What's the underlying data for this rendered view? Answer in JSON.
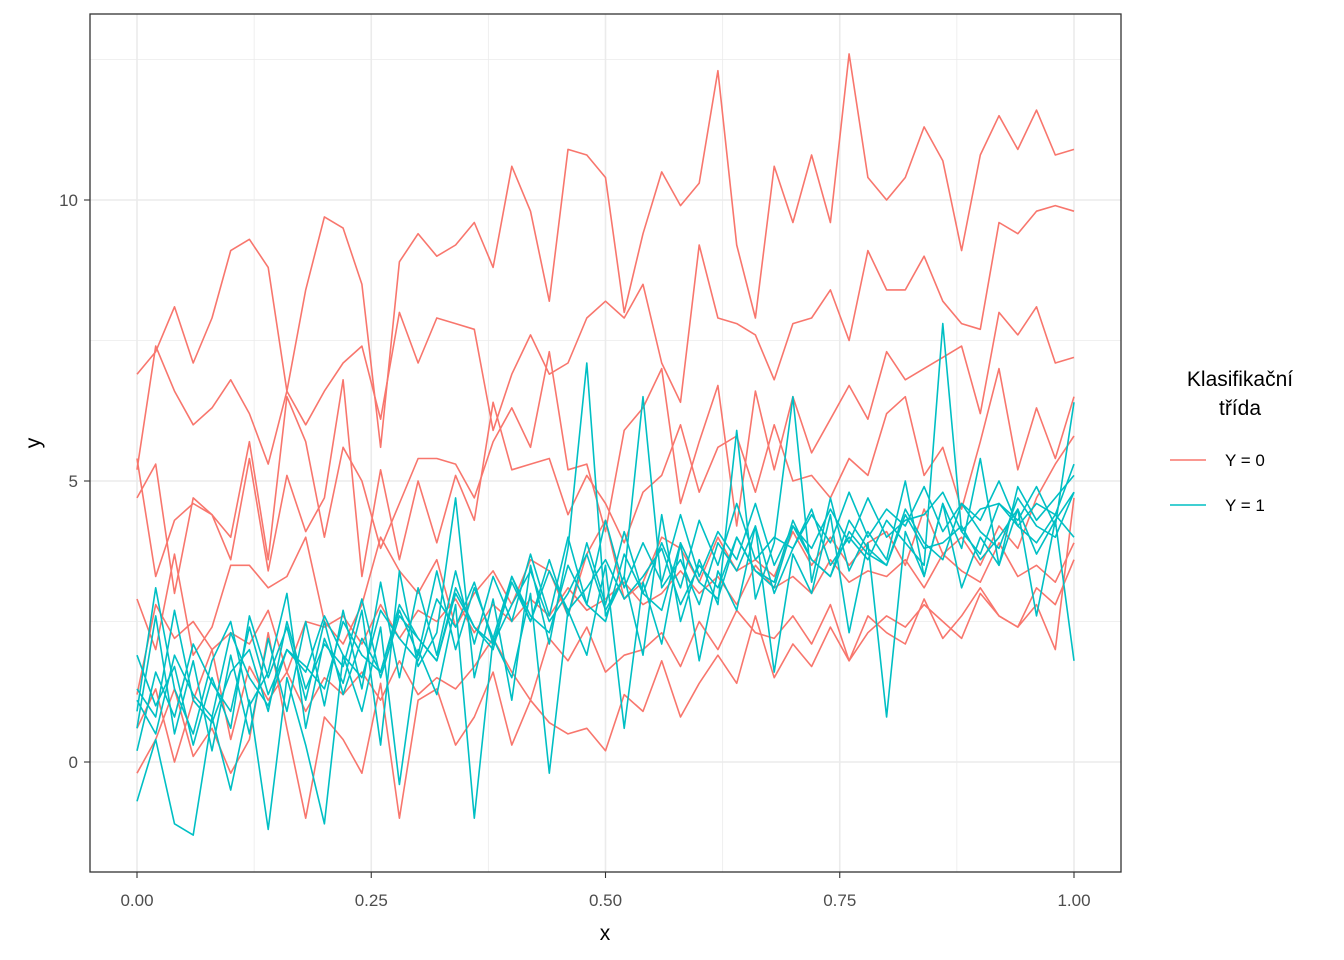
{
  "chart_data": {
    "type": "line",
    "xlabel": "x",
    "ylabel": "y",
    "xlim": [
      -0.1,
      2.1
    ],
    "ylim": [
      -1.6,
      12.8
    ],
    "x_ticks": [
      0,
      0.25,
      0.5,
      0.75,
      1
    ],
    "x_tick_labels": [
      "0.00",
      "0.25",
      "0.50",
      "0.75",
      "1.00"
    ],
    "y_ticks": [
      0,
      5,
      10
    ],
    "y_tick_labels": [
      "0",
      "5",
      "10"
    ],
    "x_minor": [
      0.125,
      0.375,
      0.625,
      0.875
    ],
    "y_minor": [
      -2.5,
      2.5,
      7.5,
      12.5
    ],
    "grid": true,
    "legend": {
      "title": "Klasifikační\ntřída",
      "title_lines": [
        "Klasifikační",
        "třída"
      ],
      "position": "right",
      "entries": [
        {
          "label": "Y = 0",
          "color": "#F8766D"
        },
        {
          "label": "Y = 1",
          "color": "#00BFC4"
        }
      ]
    },
    "x": [
      0,
      0.02,
      0.04,
      0.06,
      0.08,
      0.1,
      0.12,
      0.14,
      0.16,
      0.18,
      0.2,
      0.22,
      0.24,
      0.26,
      0.28,
      0.3,
      0.32,
      0.34,
      0.36,
      0.38,
      0.4,
      0.42,
      0.44,
      0.46,
      0.48,
      0.5,
      0.52,
      0.54,
      0.56,
      0.58,
      0.6,
      0.62,
      0.64,
      0.66,
      0.68,
      0.7,
      0.72,
      0.74,
      0.76,
      0.78,
      0.8,
      0.82,
      0.84,
      0.86,
      0.88,
      0.9,
      0.92,
      0.94,
      0.96,
      0.98,
      1
    ],
    "series": [
      {
        "group": "Y = 0",
        "color": "#F8766D",
        "values": [
          6.9,
          7.3,
          8.1,
          7.1,
          7.9,
          9.1,
          9.3,
          8.8,
          6.6,
          8.4,
          9.7,
          9.5,
          8.5,
          5.6,
          8.9,
          9.4,
          9.0,
          9.2,
          9.6,
          8.8,
          10.6,
          9.8,
          8.2,
          10.9,
          10.8,
          10.4,
          8.0,
          9.4,
          10.5,
          9.9,
          10.3,
          12.3,
          9.2,
          7.9,
          10.6,
          9.6,
          10.8,
          9.6,
          12.6,
          10.4,
          10.0,
          10.4,
          11.3,
          10.7,
          9.1,
          10.8,
          11.5,
          10.9,
          11.6,
          10.8,
          10.9
        ]
      },
      {
        "group": "Y = 0",
        "color": "#F8766D",
        "values": [
          5.2,
          7.4,
          6.6,
          6.0,
          6.3,
          6.8,
          6.2,
          5.3,
          6.6,
          6.0,
          6.6,
          7.1,
          7.4,
          6.1,
          8.0,
          7.1,
          7.9,
          7.8,
          7.7,
          5.9,
          6.9,
          7.6,
          6.9,
          7.1,
          7.9,
          8.2,
          7.9,
          8.5,
          7.1,
          6.4,
          9.2,
          7.9,
          7.8,
          7.6,
          6.8,
          7.8,
          7.9,
          8.4,
          7.5,
          9.1,
          8.4,
          8.4,
          9.0,
          8.2,
          7.8,
          7.7,
          9.6,
          9.4,
          9.8,
          9.9,
          9.8
        ]
      },
      {
        "group": "Y = 0",
        "color": "#F8766D",
        "values": [
          5.4,
          3.3,
          4.3,
          4.6,
          4.4,
          4.0,
          5.7,
          3.6,
          6.5,
          5.7,
          4.0,
          5.6,
          5.0,
          3.8,
          4.6,
          5.4,
          5.4,
          5.3,
          4.7,
          5.7,
          6.3,
          5.6,
          7.3,
          5.2,
          5.3,
          4.1,
          5.9,
          6.3,
          7.0,
          4.6,
          5.7,
          6.7,
          4.2,
          6.6,
          5.2,
          6.5,
          5.5,
          6.1,
          6.7,
          6.1,
          7.3,
          6.8,
          7.0,
          7.2,
          7.4,
          6.2,
          8.0,
          7.6,
          8.1,
          7.1,
          7.2
        ]
      },
      {
        "group": "Y = 0",
        "color": "#F8766D",
        "values": [
          4.7,
          5.3,
          3.0,
          4.7,
          4.4,
          3.6,
          5.4,
          3.4,
          5.1,
          4.1,
          4.7,
          6.8,
          3.3,
          5.2,
          3.6,
          5.0,
          3.9,
          5.1,
          4.3,
          6.4,
          5.2,
          5.3,
          5.4,
          4.4,
          5.1,
          4.6,
          3.9,
          4.8,
          5.1,
          6.0,
          4.8,
          5.6,
          5.8,
          4.8,
          6.0,
          5.0,
          5.1,
          4.7,
          5.4,
          5.1,
          6.2,
          6.5,
          5.1,
          5.6,
          4.5,
          5.7,
          7.0,
          5.2,
          6.3,
          5.4,
          6.5
        ]
      },
      {
        "group": "Y = 0",
        "color": "#F8766D",
        "values": [
          2.9,
          2.0,
          3.7,
          1.9,
          2.4,
          3.5,
          3.5,
          3.1,
          3.3,
          4.0,
          2.5,
          2.1,
          2.8,
          4.0,
          3.4,
          3.0,
          3.6,
          2.4,
          3.0,
          3.4,
          2.8,
          3.6,
          3.4,
          2.6,
          3.7,
          4.3,
          2.9,
          3.2,
          4.0,
          3.8,
          3.2,
          4.0,
          3.4,
          3.6,
          3.3,
          4.1,
          3.5,
          4.0,
          3.5,
          3.9,
          4.1,
          3.5,
          4.5,
          3.7,
          4.0,
          3.5,
          4.2,
          3.8,
          4.7,
          5.3,
          5.8
        ]
      },
      {
        "group": "Y = 0",
        "color": "#F8766D",
        "values": [
          1.2,
          2.8,
          2.2,
          2.5,
          2.0,
          2.3,
          2.1,
          2.7,
          1.6,
          2.5,
          2.4,
          2.6,
          2.1,
          2.8,
          2.2,
          2.7,
          2.5,
          2.9,
          2.3,
          2.8,
          2.5,
          2.9,
          2.6,
          3.1,
          2.7,
          2.9,
          3.2,
          2.8,
          3.0,
          3.4,
          3.0,
          3.3,
          2.8,
          3.5,
          3.1,
          3.3,
          3.0,
          3.6,
          3.2,
          3.4,
          3.3,
          3.6,
          3.1,
          3.7,
          3.4,
          3.2,
          3.9,
          3.3,
          3.5,
          3.2,
          3.9
        ]
      },
      {
        "group": "Y = 0",
        "color": "#F8766D",
        "values": [
          0.6,
          1.3,
          0.0,
          1.1,
          2.0,
          0.4,
          1.7,
          1.1,
          1.6,
          0.9,
          1.5,
          1.2,
          1.6,
          1.1,
          1.8,
          1.2,
          1.5,
          1.3,
          1.7,
          2.2,
          1.6,
          1.1,
          2.2,
          1.8,
          2.4,
          1.6,
          1.9,
          2.0,
          2.3,
          1.7,
          2.5,
          2.0,
          2.7,
          2.3,
          2.2,
          2.6,
          2.1,
          2.8,
          1.8,
          2.3,
          2.6,
          2.4,
          2.8,
          2.5,
          2.2,
          3.0,
          2.6,
          2.4,
          3.1,
          2.8,
          3.6
        ]
      },
      {
        "group": "Y = 0",
        "color": "#F8766D",
        "values": [
          -0.2,
          0.4,
          1.3,
          0.1,
          0.6,
          -0.2,
          0.4,
          2.3,
          0.6,
          -1.0,
          0.8,
          0.4,
          -0.2,
          1.4,
          -1.0,
          1.1,
          1.3,
          0.3,
          0.8,
          1.6,
          0.3,
          1.1,
          0.7,
          0.5,
          0.6,
          0.2,
          1.2,
          0.9,
          1.8,
          0.8,
          1.4,
          1.9,
          1.4,
          2.6,
          1.5,
          2.1,
          1.7,
          2.4,
          1.8,
          2.6,
          2.3,
          2.1,
          2.9,
          2.2,
          2.6,
          3.1,
          2.6,
          2.4,
          2.8,
          2.0,
          4.7
        ]
      },
      {
        "group": "Y = 1",
        "color": "#00BFC4",
        "values": [
          1.9,
          1.0,
          1.7,
          0.3,
          1.5,
          0.6,
          2.6,
          1.5,
          2.4,
          1.1,
          2.5,
          1.2,
          2.2,
          1.6,
          2.7,
          1.9,
          3.4,
          2.0,
          3.1,
          2.2,
          3.3,
          2.5,
          3.6,
          2.6,
          3.9,
          2.8,
          4.1,
          3.0,
          3.9,
          3.1,
          4.3,
          3.5,
          4.6,
          3.6,
          4.0,
          3.8,
          4.4,
          3.9,
          4.8,
          4.0,
          4.5,
          4.2,
          4.9,
          4.1,
          4.6,
          4.3,
          5.0,
          4.2,
          4.6,
          4.4,
          5.3
        ]
      },
      {
        "group": "Y = 1",
        "color": "#00BFC4",
        "values": [
          0.6,
          2.6,
          0.5,
          1.8,
          0.2,
          1.9,
          0.5,
          2.2,
          0.9,
          2.5,
          1.0,
          2.7,
          1.3,
          3.2,
          1.5,
          3.1,
          1.9,
          3.4,
          2.1,
          3.3,
          2.5,
          3.7,
          2.6,
          4.0,
          2.8,
          4.3,
          3.1,
          3.9,
          3.2,
          4.4,
          3.3,
          4.1,
          3.6,
          4.6,
          3.5,
          4.2,
          3.8,
          4.5,
          3.9,
          4.7,
          4.0,
          4.3,
          4.4,
          4.8,
          4.1,
          4.5,
          4.6,
          4.3,
          4.9,
          4.2,
          6.4
        ]
      },
      {
        "group": "Y = 1",
        "color": "#00BFC4",
        "values": [
          1.3,
          0.8,
          2.7,
          1.1,
          0.7,
          1.6,
          2.0,
          0.9,
          2.5,
          1.3,
          2.1,
          1.7,
          2.9,
          1.5,
          2.6,
          2.2,
          1.8,
          3.0,
          2.4,
          2.1,
          3.2,
          2.5,
          3.4,
          2.7,
          3.1,
          3.6,
          2.9,
          3.3,
          3.8,
          2.8,
          3.5,
          3.1,
          4.0,
          3.4,
          3.2,
          4.3,
          3.6,
          3.3,
          4.1,
          3.7,
          3.5,
          4.4,
          3.8,
          3.9,
          4.2,
          3.6,
          4.0,
          4.5,
          3.7,
          4.3,
          4.8
        ]
      },
      {
        "group": "Y = 1",
        "color": "#00BFC4",
        "values": [
          -0.7,
          0.4,
          -1.1,
          -1.3,
          0.8,
          -0.5,
          1.1,
          -1.2,
          1.5,
          0.3,
          -1.1,
          1.9,
          0.9,
          2.4,
          -0.4,
          2.0,
          1.2,
          2.8,
          -1.0,
          2.2,
          1.5,
          3.0,
          -0.2,
          2.7,
          1.9,
          3.5,
          0.6,
          3.2,
          2.1,
          3.9,
          1.8,
          3.4,
          2.7,
          4.2,
          1.6,
          3.7,
          3.0,
          4.4,
          2.3,
          3.9,
          0.8,
          4.1,
          3.3,
          4.6,
          3.1,
          4.0,
          3.5,
          4.5,
          2.6,
          4.3,
          1.8
        ]
      },
      {
        "group": "Y = 1",
        "color": "#00BFC4",
        "values": [
          0.2,
          1.6,
          0.8,
          2.1,
          1.4,
          0.9,
          2.4,
          1.2,
          2.0,
          1.6,
          2.6,
          1.9,
          1.5,
          2.7,
          2.2,
          1.8,
          2.9,
          2.4,
          3.2,
          2.1,
          2.8,
          3.4,
          2.5,
          3.0,
          3.7,
          2.7,
          3.3,
          6.5,
          3.1,
          3.6,
          2.8,
          3.9,
          3.4,
          4.2,
          3.0,
          3.8,
          4.5,
          3.5,
          4.0,
          3.6,
          4.3,
          3.9,
          3.5,
          7.8,
          4.1,
          3.7,
          4.6,
          4.2,
          3.9,
          4.4,
          4.0
        ]
      },
      {
        "group": "Y = 1",
        "color": "#00BFC4",
        "values": [
          0.9,
          3.1,
          1.3,
          0.5,
          1.8,
          2.5,
          1.0,
          1.6,
          3.0,
          0.6,
          2.2,
          1.4,
          2.7,
          0.3,
          3.4,
          1.7,
          2.3,
          4.7,
          1.5,
          2.9,
          1.1,
          3.5,
          2.1,
          3.8,
          7.1,
          2.6,
          3.3,
          1.9,
          4.4,
          2.5,
          3.6,
          2.8,
          5.9,
          2.9,
          3.9,
          6.5,
          3.2,
          4.7,
          3.4,
          4.1,
          3.6,
          5.0,
          3.3,
          4.6,
          3.8,
          5.4,
          3.5,
          4.9,
          4.3,
          4.7,
          5.1
        ]
      },
      {
        "group": "Y = 1",
        "color": "#00BFC4",
        "values": [
          1.1,
          0.5,
          1.9,
          1.2,
          0.8,
          2.3,
          1.5,
          1.0,
          2.0,
          1.7,
          1.3,
          2.5,
          1.9,
          1.6,
          2.8,
          2.2,
          1.8,
          3.1,
          2.4,
          2.0,
          3.3,
          2.6,
          2.3,
          3.5,
          2.8,
          2.5,
          3.7,
          3.0,
          2.7,
          3.9,
          3.2,
          2.9,
          4.0,
          3.4,
          3.1,
          4.2,
          3.6,
          3.3,
          4.3,
          3.8,
          3.5,
          4.5,
          3.9,
          3.6,
          4.6,
          4.1,
          3.8,
          4.7,
          4.2,
          4.0,
          4.8
        ]
      }
    ]
  }
}
